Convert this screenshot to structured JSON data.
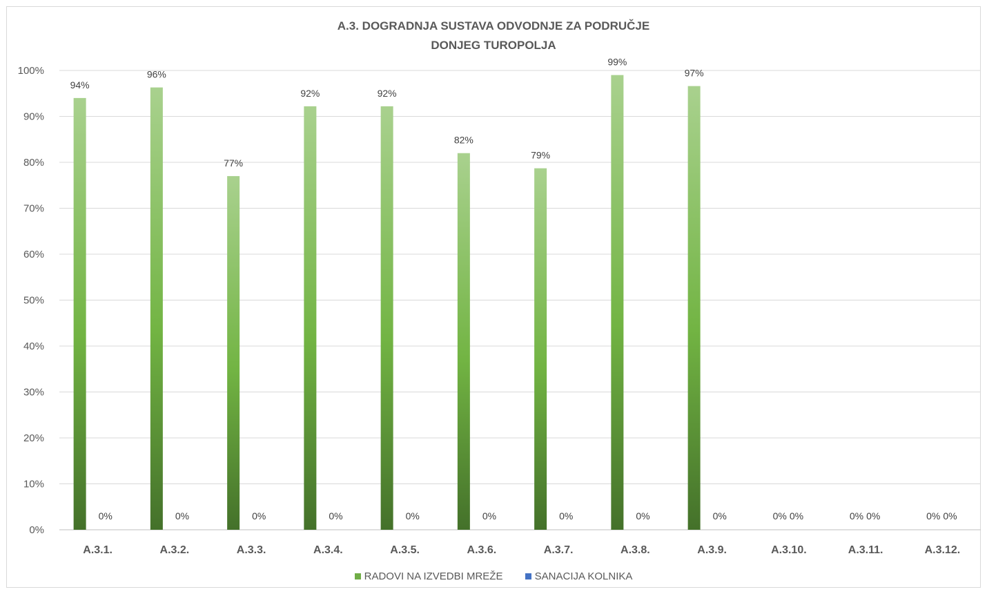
{
  "chart_data": {
    "type": "bar",
    "title_line1": "A.3. DOGRADNJA SUSTAVA ODVODNJE ZA PODRUČJE",
    "title_line2": "DONJEG TUROPOLJA",
    "xlabel": "",
    "ylabel": "",
    "ylim": [
      0,
      1
    ],
    "yticks": [
      "0%",
      "10%",
      "20%",
      "30%",
      "40%",
      "50%",
      "60%",
      "70%",
      "80%",
      "90%",
      "100%"
    ],
    "categories": [
      "A.3.1.",
      "A.3.2.",
      "A.3.3.",
      "A.3.4.",
      "A.3.5.",
      "A.3.6.",
      "A.3.7.",
      "A.3.8.",
      "A.3.9.",
      "A.3.10.",
      "A.3.11.",
      "A.3.12."
    ],
    "series": [
      {
        "name": "RADOVI NA IZVEDBI MREŽE",
        "color": "#70ad47",
        "values": [
          0.94,
          0.963,
          0.77,
          0.922,
          0.922,
          0.82,
          0.787,
          0.99,
          0.966,
          0,
          0,
          0
        ],
        "labels": [
          "94%",
          "96%",
          "77%",
          "92%",
          "92%",
          "82%",
          "79%",
          "99%",
          "97%",
          "0%",
          "0%",
          "0%"
        ]
      },
      {
        "name": "SANACIJA KOLNIKA",
        "color": "#4472c4",
        "values": [
          0,
          0,
          0,
          0,
          0,
          0,
          0,
          0,
          0,
          0,
          0,
          0
        ],
        "labels": [
          "0%",
          "0%",
          "0%",
          "0%",
          "0%",
          "0%",
          "0%",
          "0%",
          "0%",
          "0%",
          "0%",
          "0%"
        ]
      }
    ],
    "grid": true,
    "legend_position": "bottom"
  }
}
